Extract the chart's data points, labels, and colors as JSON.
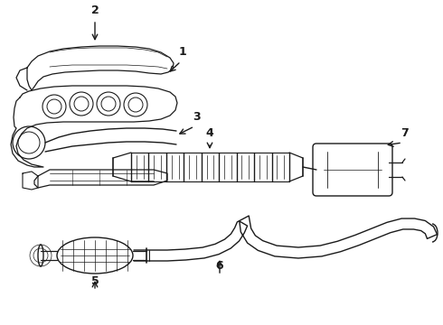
{
  "bg_color": "#ffffff",
  "line_color": "#1a1a1a",
  "figure_width": 4.9,
  "figure_height": 3.6,
  "dpi": 100
}
